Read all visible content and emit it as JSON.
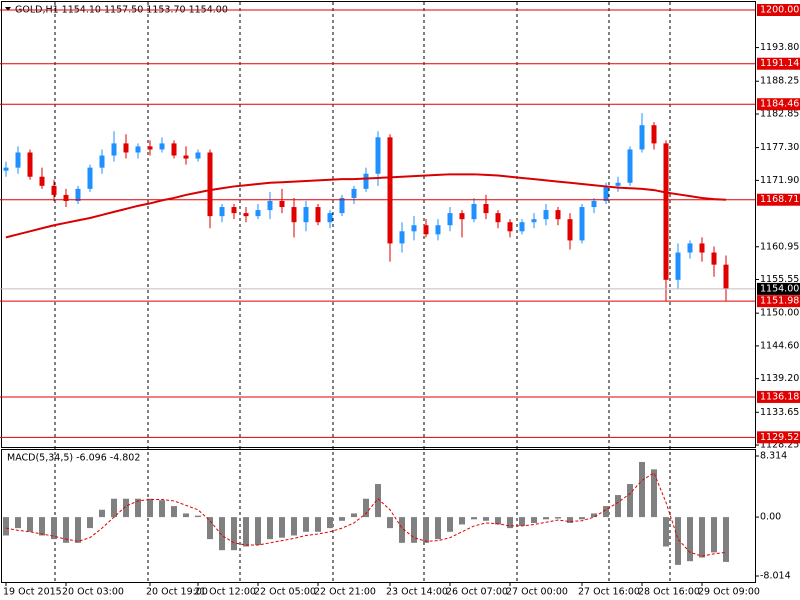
{
  "chart_data": [
    {
      "type": "candlestick",
      "title": "GOLD,H1  1154.10 1157.50 1153.70 1154.00",
      "up_color": "#1e90ff",
      "down_color": "#e00000",
      "ma_color": "#d80000",
      "level_color": "#e00000",
      "ylim": [
        1127.76,
        1201.32
      ],
      "yticks": [
        {
          "value": 1193.8,
          "label": "1193.80"
        },
        1188.25,
        1182.85,
        {
          "value": 1177.3,
          "label": "1177.30"
        },
        {
          "value": 1171.9,
          "label": "1171.90"
        },
        1160.95,
        1155.55,
        {
          "value": 1150,
          "label": "1150.00"
        },
        {
          "value": 1144.6,
          "label": "1144.60"
        },
        {
          "value": 1139.2,
          "label": "1139.20"
        },
        1133.65,
        1128.25
      ],
      "levels": [
        {
          "value": 1200,
          "label": "1200.00"
        },
        1191.14,
        1184.46,
        1168.71,
        1151.98,
        1136.18,
        1129.52
      ],
      "current_price": {
        "value": 1154,
        "label": "1154.00"
      },
      "candles": [
        [
          1173.5,
          1175.0,
          1172.5,
          1174.0
        ],
        [
          1174.0,
          1177.5,
          1173.0,
          1176.5
        ],
        [
          1176.5,
          1177.0,
          1172.0,
          1172.5
        ],
        [
          1172.5,
          1174.0,
          1170.5,
          1171.0
        ],
        [
          1171.0,
          1172.0,
          1168.5,
          1169.5
        ],
        [
          1169.5,
          1170.5,
          1167.5,
          1168.5
        ],
        [
          1168.5,
          1171.0,
          1168.0,
          1170.5
        ],
        [
          1170.5,
          1174.5,
          1170.0,
          1174.0
        ],
        [
          1174.0,
          1177.0,
          1173.0,
          1176.0
        ],
        [
          1176.0,
          1180.0,
          1175.0,
          1178.0
        ],
        [
          1178.0,
          1179.5,
          1175.5,
          1176.5
        ],
        [
          1176.5,
          1178.0,
          1175.5,
          1177.5
        ],
        [
          1177.5,
          1178.5,
          1176.0,
          1177.0
        ],
        [
          1177.0,
          1179.0,
          1176.5,
          1178.0
        ],
        [
          1178.0,
          1178.5,
          1175.5,
          1176.0
        ],
        [
          1176.0,
          1177.5,
          1174.5,
          1175.5
        ],
        [
          1175.5,
          1177.0,
          1175.0,
          1176.5
        ],
        [
          1176.5,
          1177.0,
          1164.0,
          1166.0
        ],
        [
          1166.0,
          1168.0,
          1165.0,
          1167.5
        ],
        [
          1167.5,
          1168.0,
          1165.5,
          1166.5
        ],
        [
          1166.5,
          1167.5,
          1165.0,
          1166.0
        ],
        [
          1166.0,
          1168.0,
          1165.5,
          1167.0
        ],
        [
          1167.0,
          1170.0,
          1165.5,
          1168.5
        ],
        [
          1168.5,
          1170.5,
          1166.5,
          1167.5
        ],
        [
          1167.5,
          1169.0,
          1162.5,
          1165.0
        ],
        [
          1165.0,
          1168.5,
          1163.5,
          1167.5
        ],
        [
          1167.5,
          1168.0,
          1164.5,
          1165.0
        ],
        [
          1165.0,
          1167.0,
          1164.0,
          1166.5
        ],
        [
          1166.5,
          1169.5,
          1166.0,
          1169.0
        ],
        [
          1169.0,
          1171.0,
          1168.0,
          1170.5
        ],
        [
          1170.5,
          1174.0,
          1170.0,
          1173.0
        ],
        [
          1173.0,
          1180.0,
          1171.0,
          1179.0
        ],
        [
          1179.0,
          1179.5,
          1158.5,
          1161.5
        ],
        [
          1161.5,
          1165.0,
          1160.0,
          1163.5
        ],
        [
          1163.5,
          1166.0,
          1162.0,
          1164.5
        ],
        [
          1164.5,
          1165.5,
          1162.5,
          1163.0
        ],
        [
          1163.0,
          1165.5,
          1162.0,
          1164.5
        ],
        [
          1164.5,
          1167.5,
          1163.5,
          1166.5
        ],
        [
          1166.5,
          1167.0,
          1162.5,
          1165.5
        ],
        [
          1165.5,
          1169.0,
          1165.0,
          1168.0
        ],
        [
          1168.0,
          1169.5,
          1165.5,
          1166.5
        ],
        [
          1166.5,
          1167.0,
          1164.0,
          1165.0
        ],
        [
          1165.0,
          1165.5,
          1162.5,
          1163.5
        ],
        [
          1163.5,
          1165.5,
          1163.0,
          1165.0
        ],
        [
          1165.0,
          1166.5,
          1164.0,
          1165.5
        ],
        [
          1165.5,
          1168.0,
          1164.5,
          1167.0
        ],
        [
          1167.0,
          1167.5,
          1164.5,
          1165.5
        ],
        [
          1165.5,
          1166.5,
          1160.5,
          1162.0
        ],
        [
          1162.0,
          1168.0,
          1161.5,
          1167.5
        ],
        [
          1167.5,
          1169.0,
          1166.5,
          1168.5
        ],
        [
          1168.5,
          1171.5,
          1168.0,
          1171.0
        ],
        [
          1171.0,
          1172.5,
          1170.0,
          1171.5
        ],
        [
          1171.5,
          1177.5,
          1171.0,
          1177.0
        ],
        [
          1177.0,
          1183.0,
          1176.5,
          1181.0
        ],
        [
          1181.0,
          1181.5,
          1177.0,
          1178.0
        ],
        [
          1178.0,
          1178.5,
          1152.0,
          1155.5
        ],
        [
          1155.5,
          1161.5,
          1154.0,
          1160.0
        ],
        [
          1160.0,
          1162.0,
          1159.0,
          1161.5
        ],
        [
          1161.5,
          1162.5,
          1158.5,
          1160.0
        ],
        [
          1160.0,
          1161.0,
          1156.0,
          1158.0
        ],
        [
          1158.0,
          1159.5,
          1152.0,
          1154.0
        ]
      ],
      "ma": [
        1162.5,
        1163.0,
        1163.5,
        1164.0,
        1164.5,
        1164.9,
        1165.3,
        1165.7,
        1166.2,
        1166.7,
        1167.2,
        1167.7,
        1168.1,
        1168.6,
        1169.0,
        1169.5,
        1169.9,
        1170.3,
        1170.6,
        1170.9,
        1171.1,
        1171.3,
        1171.5,
        1171.6,
        1171.7,
        1171.8,
        1171.9,
        1172.0,
        1172.1,
        1172.1,
        1172.2,
        1172.3,
        1172.4,
        1172.5,
        1172.6,
        1172.7,
        1172.8,
        1172.9,
        1172.9,
        1172.9,
        1172.8,
        1172.7,
        1172.5,
        1172.3,
        1172.1,
        1171.9,
        1171.7,
        1171.5,
        1171.3,
        1171.1,
        1170.9,
        1170.7,
        1170.6,
        1170.5,
        1170.3,
        1169.9,
        1169.6,
        1169.3,
        1169.0,
        1168.8,
        1168.7
      ]
    },
    {
      "type": "macd",
      "title": "MACD(5,34,5) -6.096 -4.802",
      "color": "#808080",
      "signal_color": "#e00000",
      "ylim": [
        -8.83,
        9.13
      ],
      "yticks": [
        8.314,
        {
          "value": 0,
          "label": "0.00"
        },
        -8.014
      ],
      "xticks": [
        {
          "value": 0,
          "label": "19 Oct 2015"
        },
        {
          "value": 5,
          "label": "20 Oct 03:00"
        },
        {
          "value": 12,
          "label": "20 Oct 19:00"
        },
        {
          "value": 16,
          "label": "21 Oct 12:00"
        },
        {
          "value": 21,
          "label": "22 Oct 05:00"
        },
        {
          "value": 26,
          "label": "22 Oct 21:00"
        },
        {
          "value": 32,
          "label": "23 Oct 14:00"
        },
        {
          "value": 37,
          "label": "26 Oct 07:00"
        },
        {
          "value": 42,
          "label": "27 Oct 00:00"
        },
        {
          "value": 48,
          "label": "27 Oct 16:00"
        },
        {
          "value": 53,
          "label": "28 Oct 16:00"
        },
        {
          "value": 58,
          "label": "29 Oct 09:00"
        }
      ],
      "values": [
        -2.5,
        -1.5,
        -2,
        -2.5,
        -3,
        -3.5,
        -3.5,
        -1.5,
        1,
        2.5,
        2.5,
        2.5,
        2.5,
        2.3,
        1.5,
        0.5,
        0.2,
        -3,
        -4.5,
        -4.5,
        -4,
        -3.8,
        -3,
        -2.8,
        -2.5,
        -2,
        -2,
        -1.5,
        -0.5,
        0.5,
        2.5,
        4.5,
        -1.5,
        -3.5,
        -3.5,
        -3.5,
        -3,
        -2,
        -1,
        -0.3,
        -0.5,
        -1,
        -1.5,
        -1.2,
        -0.8,
        -0.3,
        -0.2,
        -0.8,
        -0.3,
        0.5,
        1.5,
        3,
        4.5,
        7.5,
        6.5,
        -4,
        -6.5,
        -6,
        -5.5,
        -4.8,
        -6.1
      ],
      "signal": [
        -1.5,
        -1.8,
        -2,
        -2.3,
        -2.6,
        -3,
        -3.3,
        -2.8,
        -1.5,
        0,
        1.5,
        2.2,
        2.4,
        2.4,
        2.2,
        1.6,
        1,
        -0.5,
        -2.5,
        -3.5,
        -3.8,
        -3.8,
        -3.5,
        -3.2,
        -2.9,
        -2.5,
        -2.3,
        -2,
        -1.5,
        -0.8,
        0.5,
        2.5,
        1,
        -1.5,
        -2.8,
        -3.3,
        -3.2,
        -2.8,
        -2,
        -1.2,
        -0.8,
        -0.9,
        -1.2,
        -1.2,
        -1,
        -0.7,
        -0.4,
        -0.6,
        -0.5,
        0,
        1,
        2,
        3.2,
        5,
        6,
        2,
        -3,
        -4.8,
        -5.3,
        -5,
        -4.8
      ]
    }
  ]
}
